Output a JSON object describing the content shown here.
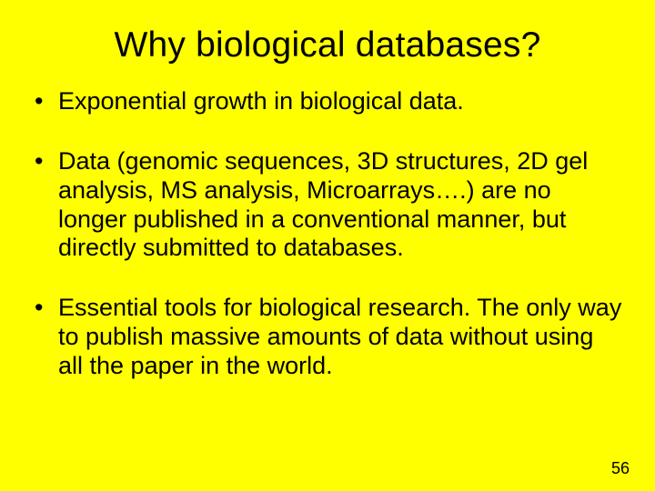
{
  "background_color": "#ffff00",
  "text_color": "#000000",
  "font_family": "Arial",
  "title": {
    "text": "Why biological databases?",
    "fontsize": 39,
    "align": "center"
  },
  "bullets": {
    "fontsize": 27,
    "line_height": 1.18,
    "items": [
      "Exponential growth in biological data.",
      "Data (genomic sequences, 3D structures, 2D gel analysis, MS analysis, Microarrays….) are no longer published in a conventional manner, but directly submitted to databases.",
      "Essential tools for biological research. The only way to publish massive amounts of data without using all the paper in the world."
    ]
  },
  "page_number": {
    "value": "56",
    "fontsize": 18
  }
}
